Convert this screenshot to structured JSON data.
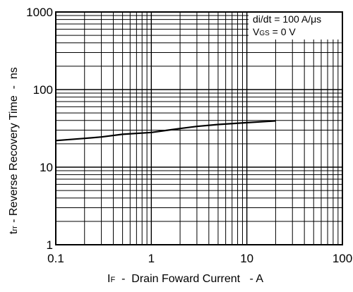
{
  "chart_data": {
    "type": "line",
    "x_scale": "log",
    "y_scale": "log",
    "xlim": [
      0.1,
      100
    ],
    "ylim": [
      1,
      1000
    ],
    "x_ticks": [
      "0.1",
      "1",
      "10",
      "100"
    ],
    "y_ticks": [
      "1",
      "10",
      "100",
      "1000"
    ],
    "xlabel": {
      "main": "I",
      "sub": "F",
      "rest": "  -  Drain Foward Current   - A"
    },
    "ylabel": {
      "main": "t",
      "sub": "rr",
      "rest": " - Reverse Recovery Time  -  ns"
    },
    "annotation": {
      "line1": "di/dt = 100 A/μs",
      "line2_main": "V",
      "line2_sub": "GS",
      "line2_rest": " = 0 V"
    },
    "grid": true,
    "series": [
      {
        "x": [
          0.1,
          0.2,
          0.3,
          0.5,
          1,
          1.5,
          2,
          3,
          5,
          10,
          20
        ],
        "y": [
          22,
          23.5,
          24.5,
          26.5,
          28,
          30,
          31.5,
          33.5,
          35.5,
          37.5,
          39.5
        ]
      }
    ],
    "colors": {
      "line": "#000000",
      "grid": "#000000"
    }
  }
}
